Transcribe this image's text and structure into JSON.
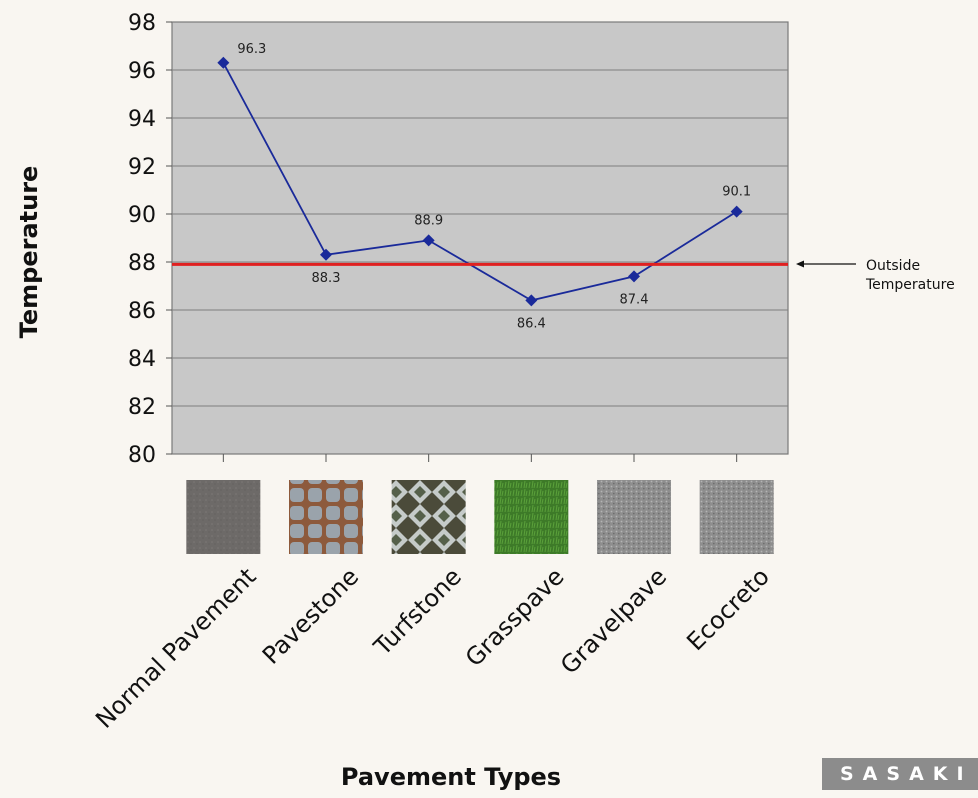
{
  "chart_data": {
    "type": "line",
    "title": "",
    "xlabel": "Pavement Types",
    "ylabel": "Temperature",
    "categories": [
      "Normal Pavement",
      "Pavestone",
      "Turfstone",
      "Grasspave",
      "Gravelpave",
      "Ecocreto"
    ],
    "series": [
      {
        "values": [
          96.3,
          88.3,
          88.9,
          86.4,
          87.4,
          90.1
        ],
        "color": "#1a2a9a"
      }
    ],
    "data_labels": [
      "96.3",
      "88.3",
      "88.9",
      "86.4",
      "87.4",
      "90.1"
    ],
    "yticks": [
      80,
      82,
      84,
      86,
      88,
      90,
      92,
      94,
      96,
      98
    ],
    "ylim": [
      80,
      98
    ],
    "grid": true,
    "reference_line": {
      "value": 87.9,
      "color": "#e02020",
      "label_line1": "Outside",
      "label_line2": "Temperature"
    },
    "plot_background": "#c8c8c8"
  },
  "swatches": [
    {
      "name": "normal-pavement-swatch",
      "color": "#6f6c6a",
      "pattern": "asphalt"
    },
    {
      "name": "pavestone-swatch",
      "color": "#9aa0a6",
      "pattern": "pavers"
    },
    {
      "name": "turfstone-swatch",
      "color": "#8a9088",
      "pattern": "turf"
    },
    {
      "name": "grasspave-swatch",
      "color": "#3f7a2a",
      "pattern": "grass"
    },
    {
      "name": "gravelpave-swatch",
      "color": "#8f8f8f",
      "pattern": "gravel"
    },
    {
      "name": "ecocreto-swatch",
      "color": "#9c9c9a",
      "pattern": "gravel"
    }
  ],
  "logo": {
    "text": "SASAKI"
  }
}
